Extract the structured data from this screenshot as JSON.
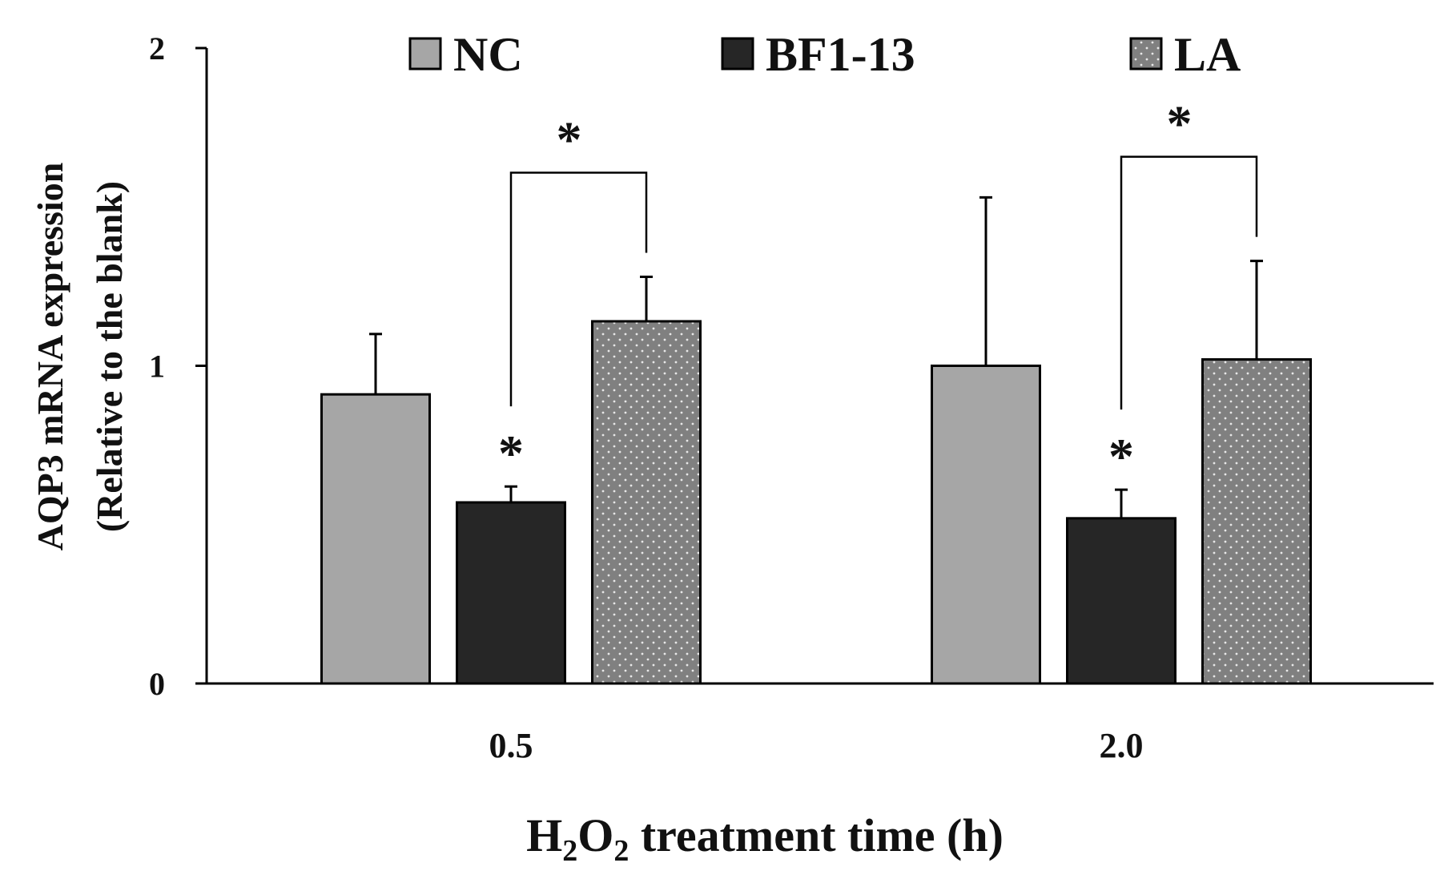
{
  "chart_data": {
    "type": "bar",
    "categories": [
      "0.5",
      "2.0"
    ],
    "ylim": [
      0,
      2
    ],
    "yticks": [
      "0",
      "1",
      "2"
    ],
    "ylabel_line1": "AQP3 mRNA expression",
    "ylabel_line2": "(Relative to the blank)",
    "xlabel": {
      "prefix": "H",
      "sub1": "2",
      "mid": "O",
      "sub2": "2",
      "suffix": " treatment time (h)"
    },
    "series": [
      {
        "name": "NC",
        "values": [
          0.91,
          1.0
        ],
        "errors": [
          0.19,
          0.53
        ],
        "color": "#a6a6a6",
        "pattern": "solid"
      },
      {
        "name": "BF1-13",
        "values": [
          0.57,
          0.52
        ],
        "errors": [
          0.05,
          0.09
        ],
        "color": "#262626",
        "pattern": "solid"
      },
      {
        "name": "LA",
        "values": [
          1.14,
          1.02
        ],
        "errors": [
          0.14,
          0.31
        ],
        "color": "#808080",
        "pattern": "dots"
      }
    ],
    "annotations": {
      "bf_stars": [
        "*",
        "*"
      ],
      "bracket_stars": [
        "*",
        "*"
      ]
    }
  }
}
